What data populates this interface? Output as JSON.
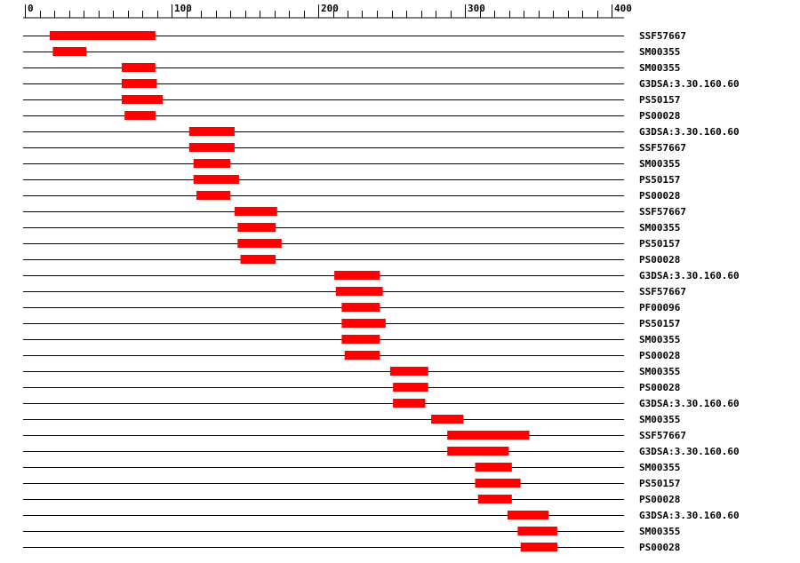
{
  "chart_data": {
    "type": "feature-map",
    "title": "",
    "axis": {
      "min": 0,
      "max": 400,
      "major_ticks": [
        0,
        100,
        200,
        300,
        400
      ],
      "tick_labels": [
        "0",
        "100",
        "200",
        "300",
        "400"
      ],
      "minor_step": 10
    },
    "colors": {
      "bar": "#ff0000",
      "line": "#000000"
    },
    "rows": [
      {
        "label": "SSF57667",
        "start": 17,
        "end": 89
      },
      {
        "label": "SM00355",
        "start": 19,
        "end": 42
      },
      {
        "label": "SM00355",
        "start": 66,
        "end": 89
      },
      {
        "label": "G3DSA:3.30.160.60",
        "start": 66,
        "end": 90
      },
      {
        "label": "PS50157",
        "start": 66,
        "end": 94
      },
      {
        "label": "PS00028",
        "start": 68,
        "end": 89
      },
      {
        "label": "G3DSA:3.30.160.60",
        "start": 112,
        "end": 143
      },
      {
        "label": "SSF57667",
        "start": 112,
        "end": 143
      },
      {
        "label": "SM00355",
        "start": 115,
        "end": 140
      },
      {
        "label": "PS50157",
        "start": 115,
        "end": 146
      },
      {
        "label": "PS00028",
        "start": 117,
        "end": 140
      },
      {
        "label": "SSF57667",
        "start": 143,
        "end": 172
      },
      {
        "label": "SM00355",
        "start": 145,
        "end": 171
      },
      {
        "label": "PS50157",
        "start": 145,
        "end": 175
      },
      {
        "label": "PS00028",
        "start": 147,
        "end": 171
      },
      {
        "label": "G3DSA:3.30.160.60",
        "start": 211,
        "end": 242
      },
      {
        "label": "SSF57667",
        "start": 212,
        "end": 244
      },
      {
        "label": "PF00096",
        "start": 216,
        "end": 242
      },
      {
        "label": "PS50157",
        "start": 216,
        "end": 246
      },
      {
        "label": "SM00355",
        "start": 216,
        "end": 242
      },
      {
        "label": "PS00028",
        "start": 218,
        "end": 242
      },
      {
        "label": "SM00355",
        "start": 249,
        "end": 275
      },
      {
        "label": "PS00028",
        "start": 251,
        "end": 275
      },
      {
        "label": "G3DSA:3.30.160.60",
        "start": 251,
        "end": 273
      },
      {
        "label": "SM00355",
        "start": 277,
        "end": 299
      },
      {
        "label": "SSF57667",
        "start": 288,
        "end": 344
      },
      {
        "label": "G3DSA:3.30.160.60",
        "start": 288,
        "end": 330
      },
      {
        "label": "SM00355",
        "start": 307,
        "end": 332
      },
      {
        "label": "PS50157",
        "start": 307,
        "end": 338
      },
      {
        "label": "PS00028",
        "start": 309,
        "end": 332
      },
      {
        "label": "G3DSA:3.30.160.60",
        "start": 329,
        "end": 357
      },
      {
        "label": "SM00355",
        "start": 336,
        "end": 363
      },
      {
        "label": "PS00028",
        "start": 338,
        "end": 363
      }
    ]
  }
}
